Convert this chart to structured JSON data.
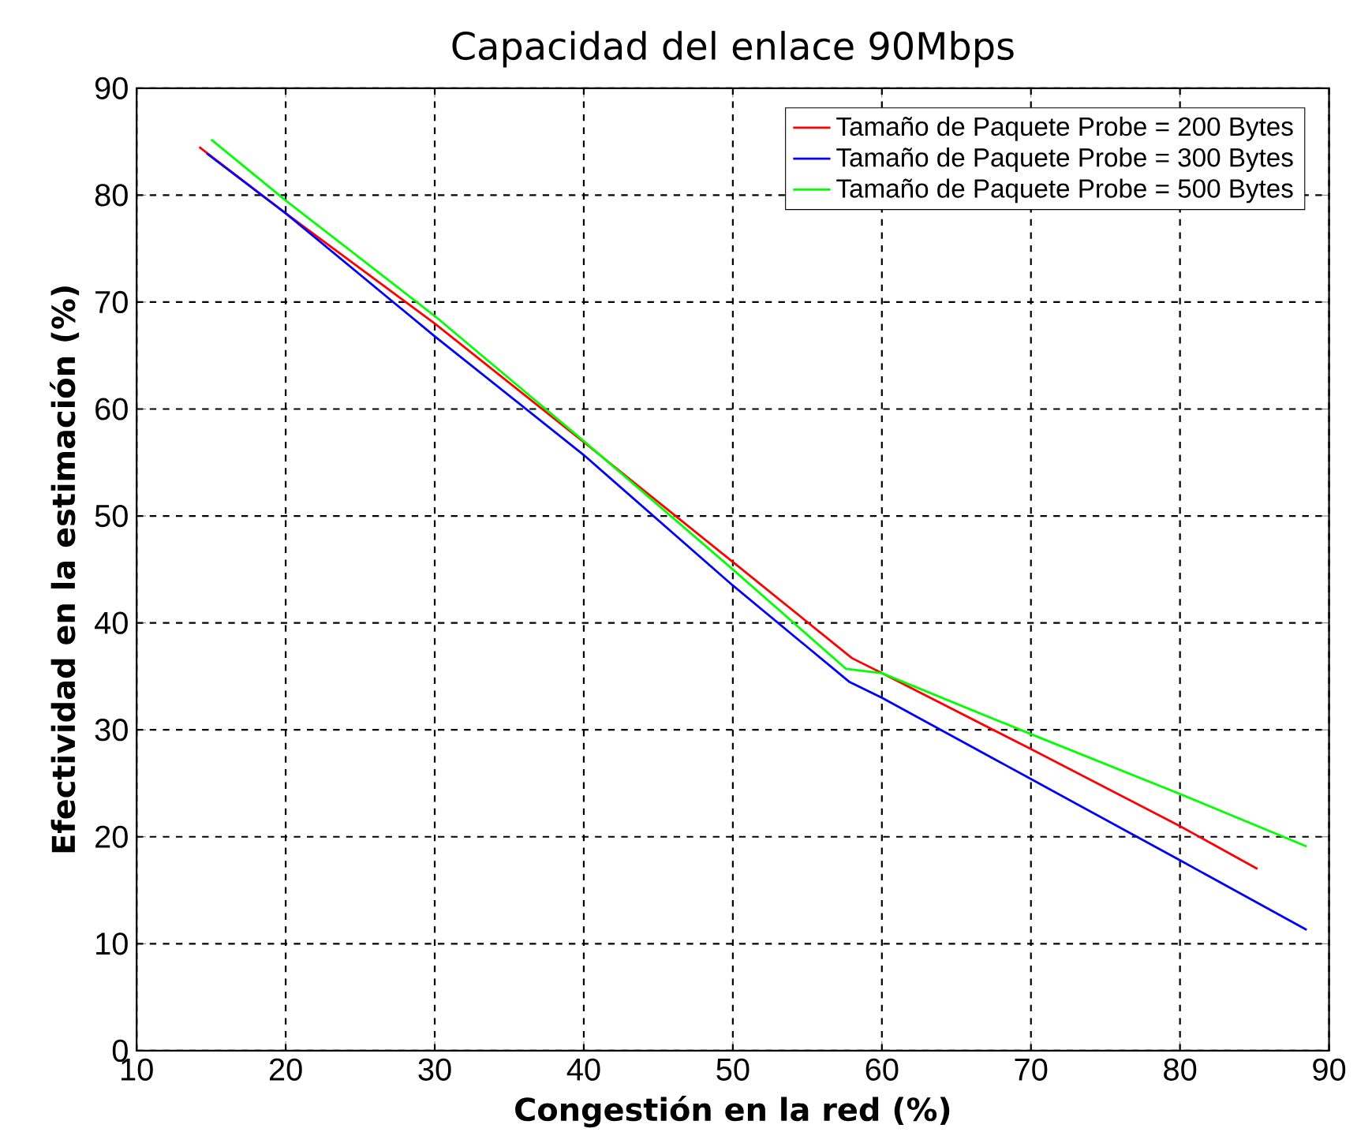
{
  "chart_data": {
    "type": "line",
    "title": "Capacidad del enlace 90Mbps",
    "xlabel": "Congestión en la red (%)",
    "ylabel": "Efectividad en la estimación (%)",
    "xlim": [
      10,
      90
    ],
    "xticks": [
      10,
      20,
      30,
      40,
      50,
      60,
      70,
      80,
      90
    ],
    "ylim": [
      0,
      90
    ],
    "yticks": [
      0,
      10,
      20,
      30,
      40,
      50,
      60,
      70,
      80,
      90
    ],
    "grid": true,
    "legend": "top right",
    "series": [
      {
        "name": "Tamaño de Paquete Probe = 200 Bytes",
        "color": "#ff0000",
        "x": [
          14.2,
          20,
          30,
          40,
          50,
          58,
          60,
          70,
          80,
          85.2
        ],
        "values": [
          84.5,
          78.3,
          68,
          56.9,
          45.7,
          36.7,
          35.3,
          28.2,
          21,
          17
        ]
      },
      {
        "name": "Tamaño de Paquete Probe = 300 Bytes",
        "color": "#0000ff",
        "x": [
          14.7,
          20,
          30,
          40,
          50,
          57.8,
          60,
          70,
          80,
          88.5
        ],
        "values": [
          83.9,
          78.3,
          66.8,
          55.7,
          43.5,
          34.5,
          33,
          25.4,
          17.8,
          11.3
        ]
      },
      {
        "name": "Tamaño de Paquete Probe = 500 Bytes",
        "color": "#00ff00",
        "x": [
          15,
          20,
          30,
          40,
          50,
          57.6,
          60,
          70,
          80,
          88.5
        ],
        "values": [
          85.2,
          79.5,
          68.7,
          57,
          45,
          35.7,
          35.3,
          29.6,
          24,
          19.1
        ]
      }
    ]
  }
}
